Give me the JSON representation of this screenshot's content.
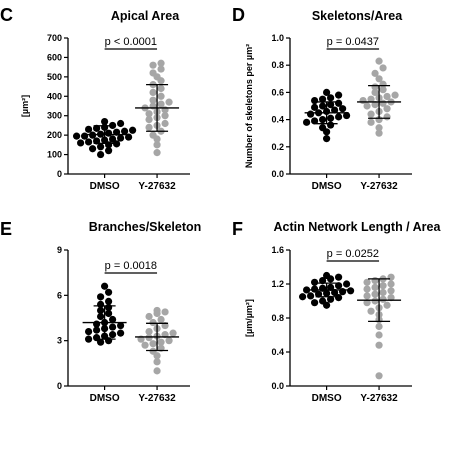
{
  "colors": {
    "dmso": "#000000",
    "y27632": "#a6a6a6",
    "axis": "#000000"
  },
  "chart_data": [
    {
      "type": "scatter",
      "letter": "C",
      "title": "Apical Area",
      "ylabel": "[µm²]",
      "xlabel": "",
      "ylim": [
        0,
        700
      ],
      "yticks": [
        "0",
        "100",
        "200",
        "300",
        "400",
        "500",
        "600",
        "700"
      ],
      "categories": [
        "DMSO",
        "Y-27632"
      ],
      "pvalue": "p < 0.0001",
      "series": [
        {
          "values": [
            100,
            120,
            130,
            140,
            150,
            155,
            160,
            165,
            170,
            175,
            180,
            185,
            190,
            195,
            195,
            200,
            205,
            210,
            215,
            220,
            225,
            230,
            235,
            240,
            250,
            260,
            270
          ],
          "mean": 203,
          "sd": 45
        },
        {
          "values": [
            110,
            150,
            180,
            200,
            220,
            240,
            250,
            260,
            280,
            290,
            300,
            310,
            320,
            330,
            340,
            350,
            360,
            370,
            380,
            400,
            420,
            440,
            460,
            480,
            500,
            520,
            540,
            560,
            570
          ],
          "mean": 340,
          "sd": 120
        }
      ]
    },
    {
      "type": "scatter",
      "letter": "D",
      "title": "Skeletons/Area",
      "ylabel": "Number of skeletons per µm²",
      "xlabel": "",
      "ylim": [
        0,
        1.0
      ],
      "yticks": [
        "0.0",
        "0.2",
        "0.4",
        "0.6",
        "0.8",
        "1.0"
      ],
      "categories": [
        "DMSO",
        "Y-27632"
      ],
      "pvalue": "p = 0.0437",
      "series": [
        {
          "values": [
            0.26,
            0.31,
            0.34,
            0.36,
            0.38,
            0.39,
            0.4,
            0.41,
            0.42,
            0.43,
            0.44,
            0.45,
            0.46,
            0.47,
            0.48,
            0.49,
            0.5,
            0.51,
            0.52,
            0.54,
            0.55,
            0.56,
            0.58,
            0.6
          ],
          "mean": 0.45,
          "sd": 0.08
        },
        {
          "values": [
            0.3,
            0.34,
            0.38,
            0.4,
            0.42,
            0.44,
            0.46,
            0.48,
            0.5,
            0.51,
            0.52,
            0.53,
            0.54,
            0.55,
            0.56,
            0.57,
            0.58,
            0.6,
            0.62,
            0.64,
            0.66,
            0.7,
            0.74,
            0.78,
            0.83
          ],
          "mean": 0.53,
          "sd": 0.12
        }
      ]
    },
    {
      "type": "scatter",
      "letter": "E",
      "title": "Branches/Skeleton",
      "ylabel": "",
      "xlabel": "",
      "ylim": [
        0,
        9
      ],
      "yticks": [
        "0",
        "3",
        "6",
        "9"
      ],
      "categories": [
        "DMSO",
        "Y-27632"
      ],
      "pvalue": "p = 0.0018",
      "series": [
        {
          "values": [
            2.9,
            3.0,
            3.1,
            3.2,
            3.3,
            3.4,
            3.5,
            3.6,
            3.7,
            3.8,
            3.9,
            4.0,
            4.1,
            4.2,
            4.4,
            4.6,
            4.8,
            5.0,
            5.2,
            5.4,
            5.6,
            5.9,
            6.2,
            6.6
          ],
          "mean": 4.2,
          "sd": 1.1
        },
        {
          "values": [
            1.0,
            1.6,
            2.0,
            2.3,
            2.5,
            2.7,
            2.8,
            2.9,
            3.0,
            3.1,
            3.2,
            3.3,
            3.4,
            3.5,
            3.6,
            3.8,
            4.0,
            4.2,
            4.4,
            4.6,
            4.8,
            4.9,
            5.0
          ],
          "mean": 3.25,
          "sd": 0.9
        }
      ]
    },
    {
      "type": "scatter",
      "letter": "F",
      "title": "Actin Network Length / Area",
      "ylabel": "[µm/µm²]",
      "xlabel": "",
      "ylim": [
        0,
        1.6
      ],
      "yticks": [
        "0.0",
        "0.4",
        "0.8",
        "1.2",
        "1.6"
      ],
      "categories": [
        "DMSO",
        "Y-27632"
      ],
      "pvalue": "p = 0.0252",
      "series": [
        {
          "values": [
            0.95,
            0.98,
            1.0,
            1.02,
            1.04,
            1.05,
            1.06,
            1.08,
            1.09,
            1.1,
            1.11,
            1.12,
            1.13,
            1.14,
            1.15,
            1.16,
            1.18,
            1.2,
            1.22,
            1.24,
            1.26,
            1.28,
            1.3
          ],
          "mean": 1.13,
          "sd": 0.08
        },
        {
          "values": [
            0.12,
            0.48,
            0.6,
            0.7,
            0.78,
            0.84,
            0.88,
            0.92,
            0.95,
            0.98,
            1.0,
            1.02,
            1.04,
            1.06,
            1.08,
            1.1,
            1.12,
            1.14,
            1.16,
            1.18,
            1.2,
            1.22,
            1.24,
            1.26,
            1.28
          ],
          "mean": 1.01,
          "sd": 0.25
        }
      ]
    }
  ]
}
